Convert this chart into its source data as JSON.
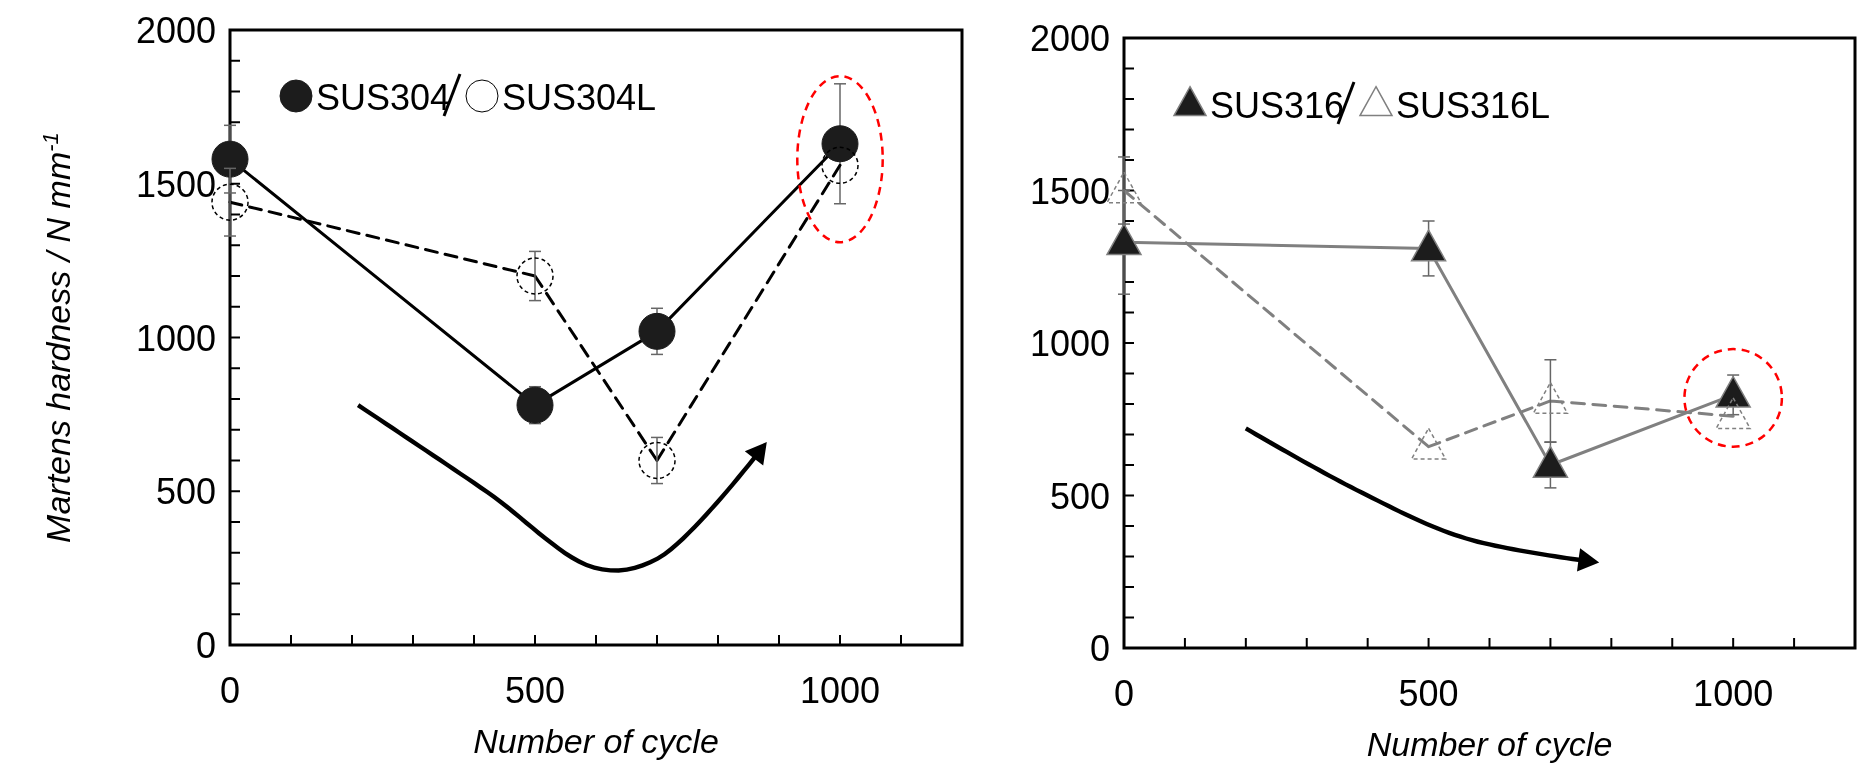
{
  "chart_data": [
    {
      "type": "line",
      "xlabel": "Number of cycle",
      "ylabel": "Martens hardness / N mm$^{-1}$",
      "x": [
        0,
        500,
        700,
        1000
      ],
      "xlim": [
        0,
        1200
      ],
      "xticks": [
        0,
        {
          "value": 100,
          "label": null
        },
        {
          "value": 200,
          "label": null
        },
        {
          "value": 300,
          "label": null
        },
        {
          "value": 400,
          "label": null
        },
        500,
        {
          "value": 600,
          "label": null
        },
        {
          "value": 700,
          "label": null
        },
        {
          "value": 800,
          "label": null
        },
        {
          "value": 900,
          "label": null
        },
        1000,
        {
          "value": 1100,
          "label": null
        }
      ],
      "ylim": [
        0,
        2000
      ],
      "yticks": [
        0,
        {
          "value": 100,
          "label": null
        },
        {
          "value": 200,
          "label": null
        },
        {
          "value": 300,
          "label": null
        },
        {
          "value": 400,
          "label": null
        },
        500,
        {
          "value": 600,
          "label": null
        },
        {
          "value": 700,
          "label": null
        },
        {
          "value": 800,
          "label": null
        },
        {
          "value": 900,
          "label": null
        },
        1000,
        {
          "value": 1100,
          "label": null
        },
        {
          "value": 1200,
          "label": null
        },
        {
          "value": 1300,
          "label": null
        },
        {
          "value": 1400,
          "label": null
        },
        1500,
        {
          "value": 1600,
          "label": null
        },
        {
          "value": 1700,
          "label": null
        },
        {
          "value": 1800,
          "label": null
        },
        {
          "value": 1900,
          "label": null
        },
        2000
      ],
      "marker": "circle",
      "legend": "top left",
      "grid": false,
      "series": [
        {
          "name": "SUS304",
          "color": "#000000",
          "line_style": "solid",
          "values": [
            1580,
            780,
            1020,
            1630
          ],
          "errors": [
            110,
            60,
            75,
            195
          ]
        },
        {
          "name": "SUS304L",
          "color": "#000000",
          "line_style": "dashed",
          "values": [
            1440,
            1200,
            600,
            1560
          ],
          "errors": [
            110,
            80,
            75,
            null
          ]
        }
      ]
    },
    {
      "type": "line",
      "xlabel": "Number of cycle",
      "x": [
        0,
        500,
        700,
        1000
      ],
      "xlim": [
        0,
        1200
      ],
      "xticks": [
        0,
        {
          "value": 100,
          "label": null
        },
        {
          "value": 200,
          "label": null
        },
        {
          "value": 300,
          "label": null
        },
        {
          "value": 400,
          "label": null
        },
        500,
        {
          "value": 600,
          "label": null
        },
        {
          "value": 700,
          "label": null
        },
        {
          "value": 800,
          "label": null
        },
        {
          "value": 900,
          "label": null
        },
        1000,
        {
          "value": 1100,
          "label": null
        }
      ],
      "ylim": [
        0,
        2000
      ],
      "yticks": [
        0,
        {
          "value": 100,
          "label": null
        },
        {
          "value": 200,
          "label": null
        },
        {
          "value": 300,
          "label": null
        },
        {
          "value": 400,
          "label": null
        },
        500,
        {
          "value": 600,
          "label": null
        },
        {
          "value": 700,
          "label": null
        },
        {
          "value": 800,
          "label": null
        },
        {
          "value": 900,
          "label": null
        },
        1000,
        {
          "value": 1100,
          "label": null
        },
        {
          "value": 1200,
          "label": null
        },
        {
          "value": 1300,
          "label": null
        },
        {
          "value": 1400,
          "label": null
        },
        1500,
        {
          "value": 1600,
          "label": null
        },
        {
          "value": 1700,
          "label": null
        },
        {
          "value": 1800,
          "label": null
        },
        {
          "value": 1900,
          "label": null
        },
        2000
      ],
      "marker": "triangle",
      "legend": "top left",
      "grid": false,
      "series": [
        {
          "name": "SUS316",
          "color": "#808080",
          "line_style": "solid",
          "values": [
            1330,
            1310,
            600,
            830
          ],
          "errors": [
            170,
            90,
            75,
            65
          ]
        },
        {
          "name": "SUS316L",
          "color": "#808080",
          "line_style": "dashed",
          "values": [
            1500,
            660,
            810,
            760
          ],
          "errors": [
            110,
            null,
            135,
            null
          ]
        }
      ]
    }
  ]
}
